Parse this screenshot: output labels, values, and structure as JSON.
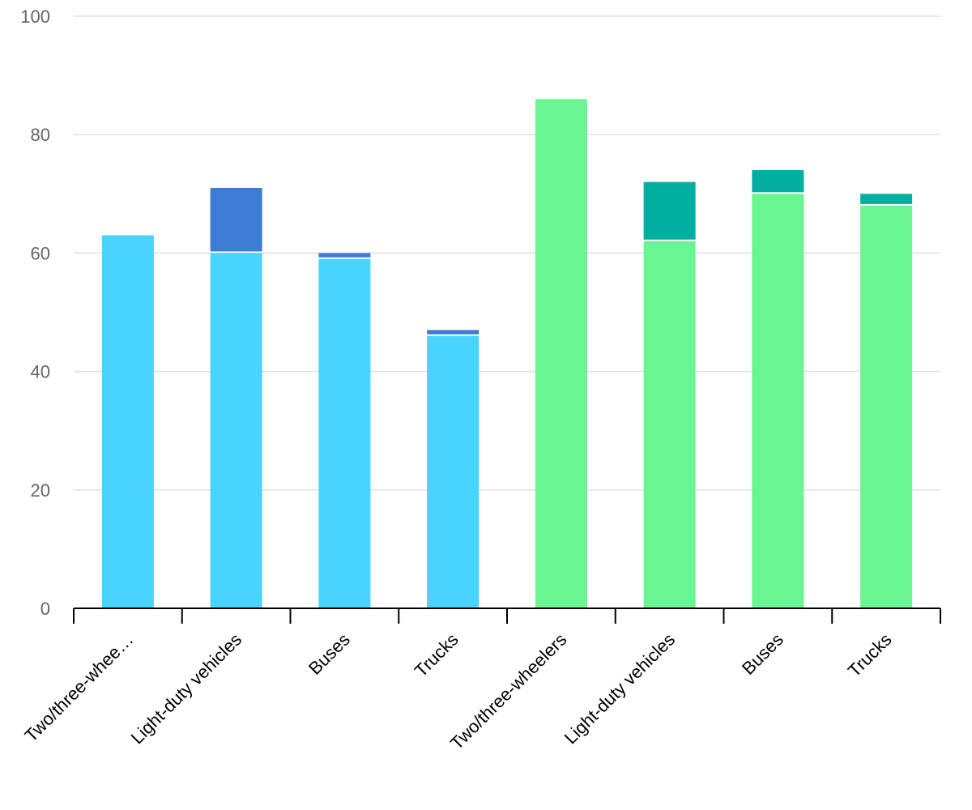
{
  "chart_data": {
    "type": "bar",
    "stacked": true,
    "categories": [
      "Two/three-whee…",
      "Light-duty vehicles",
      "Buses",
      "Trucks",
      "Two/three-wheelers",
      "Light-duty vehicles",
      "Buses",
      "Trucks"
    ],
    "groups": [
      {
        "bars": [
          0,
          1,
          2,
          3
        ],
        "base_color": "#48D4FF",
        "top_color": "#3C7CD4"
      },
      {
        "bars": [
          4,
          5,
          6,
          7
        ],
        "base_color": "#69F591",
        "top_color": "#00AFA0"
      }
    ],
    "series": [
      {
        "values": [
          63,
          60,
          59,
          46,
          86,
          62,
          70,
          68
        ]
      },
      {
        "values": [
          0,
          11,
          1,
          1,
          0,
          10,
          4,
          2
        ]
      }
    ],
    "yticks": [
      "0",
      "20",
      "40",
      "60",
      "80",
      "100"
    ],
    "ylim": [
      0,
      100
    ],
    "xlabel": "",
    "ylabel": "",
    "title": "",
    "grid": true,
    "legend": "none",
    "colors": {
      "grid": "#E0E0E0",
      "axis": "#000000",
      "ytick_text": "#666666",
      "xtick_text": "#000000"
    }
  }
}
